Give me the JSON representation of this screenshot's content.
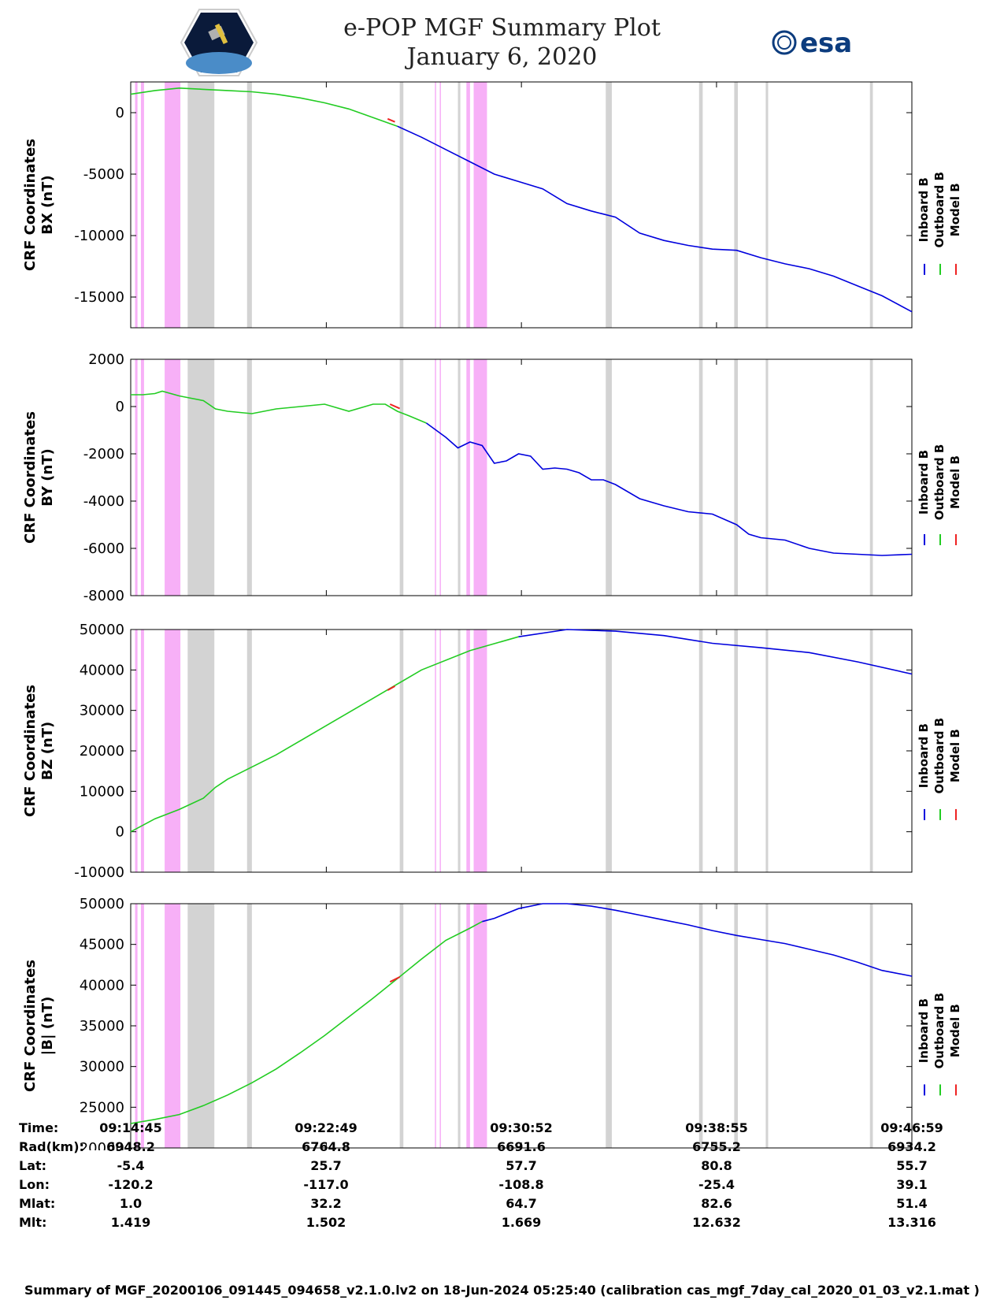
{
  "header": {
    "title": "e-POP MGF Summary Plot",
    "date": "January 6, 2020",
    "left_logo": "cassiope-satellite-logo",
    "right_logo": "esa",
    "right_logo_text": "esa"
  },
  "legend": {
    "entries": [
      {
        "label": "Inboard B",
        "color": "#0000dd"
      },
      {
        "label": "Outboard B",
        "color": "#22cc22"
      },
      {
        "label": "Model B",
        "color": "#ee2222"
      }
    ]
  },
  "colors": {
    "axis": "#000000",
    "grey_band": "#d3d3d3",
    "pink_band": "#f7b0f7",
    "inboard": "#0000dd",
    "outboard": "#22cc22",
    "model": "#ee2222"
  },
  "time_axis": {
    "x_range_min": [
      0,
      32.23
    ],
    "tick_minutes": [
      0,
      8.07,
      16.12,
      24.17,
      32.23
    ]
  },
  "bands": {
    "grey": [
      [
        2.35,
        3.45
      ],
      [
        4.8,
        5.0
      ],
      [
        11.1,
        11.25
      ],
      [
        13.5,
        13.6
      ],
      [
        14.3,
        14.42
      ],
      [
        19.6,
        19.85
      ],
      [
        23.45,
        23.6
      ],
      [
        24.9,
        25.05
      ],
      [
        26.2,
        26.3
      ],
      [
        30.5,
        30.62
      ]
    ],
    "pink": [
      [
        0.18,
        0.28
      ],
      [
        0.42,
        0.55
      ],
      [
        1.4,
        2.05
      ],
      [
        12.55,
        12.6
      ],
      [
        12.75,
        12.8
      ],
      [
        13.85,
        14.0
      ],
      [
        14.15,
        14.7
      ]
    ]
  },
  "info_table": {
    "labels": [
      "Time:",
      "Rad(km):",
      "Lat:",
      "Lon:",
      "Mlat:",
      "Mlt:"
    ],
    "columns": [
      [
        "09:14:45",
        "6948.2",
        "-5.4",
        "-120.2",
        "1.0",
        "1.419"
      ],
      [
        "09:22:49",
        "6764.8",
        "25.7",
        "-117.0",
        "32.2",
        "1.502"
      ],
      [
        "09:30:52",
        "6691.6",
        "57.7",
        "-108.8",
        "64.7",
        "1.669"
      ],
      [
        "09:38:55",
        "6755.2",
        "80.8",
        "-25.4",
        "82.6",
        "12.632"
      ],
      [
        "09:46:59",
        "6934.2",
        "55.7",
        "39.1",
        "51.4",
        "13.316"
      ]
    ]
  },
  "footer": "Summary of MGF_20200106_091445_094658_v2.1.0.lv2 on 18-Jun-2024 05:25:40 (calibration cas_mgf_7day_cal_2020_01_03_v2.1.mat )",
  "chart_data": [
    {
      "type": "line",
      "title": "BX",
      "ylabel": [
        "CRF Coordinates",
        "BX (nT)"
      ],
      "ylim": [
        -17500,
        2500
      ],
      "yticks": [
        0,
        -5000,
        -10000,
        -15000
      ],
      "series": [
        {
          "name": "Outboard B",
          "x": [
            0,
            1,
            2,
            3,
            4,
            5,
            6,
            7,
            8,
            9,
            10,
            11
          ],
          "values": [
            1500,
            1800,
            2000,
            1900,
            1800,
            1700,
            1500,
            1200,
            800,
            300,
            -400,
            -1100
          ]
        },
        {
          "name": "Inboard B",
          "x": [
            11,
            12,
            13,
            14,
            15,
            16,
            17,
            18,
            19,
            20,
            21,
            22,
            23,
            24,
            25,
            26,
            27,
            28,
            29,
            30,
            31,
            32.23
          ],
          "values": [
            -1100,
            -2000,
            -3000,
            -4000,
            -5000,
            -5600,
            -6200,
            -7400,
            -8000,
            -8500,
            -9800,
            -10400,
            -10800,
            -11100,
            -11200,
            -11800,
            -12300,
            -12700,
            -13300,
            -14100,
            -14900,
            -16200
          ]
        },
        {
          "name": "Model B",
          "x": [
            10.6,
            10.9
          ],
          "values": [
            -500,
            -750
          ]
        }
      ]
    },
    {
      "type": "line",
      "title": "BY",
      "ylabel": [
        "CRF Coordinates",
        "BY (nT)"
      ],
      "ylim": [
        -8000,
        2000
      ],
      "yticks": [
        2000,
        0,
        -2000,
        -4000,
        -6000,
        -8000
      ],
      "series": [
        {
          "name": "Outboard B",
          "x": [
            0,
            0.5,
            1,
            1.3,
            2,
            2.5,
            3,
            3.5,
            4,
            5,
            6,
            7,
            8,
            9,
            10,
            10.5,
            11,
            11.5,
            12.2
          ],
          "values": [
            500,
            500,
            550,
            650,
            450,
            350,
            250,
            -100,
            -200,
            -300,
            -100,
            0,
            100,
            -200,
            100,
            100,
            -200,
            -400,
            -700
          ]
        },
        {
          "name": "Inboard B",
          "x": [
            12.2,
            13,
            13.5,
            14,
            14.5,
            15,
            15.5,
            16,
            16.5,
            17,
            17.5,
            18,
            18.5,
            19,
            19.5,
            20,
            21,
            22,
            23,
            24,
            25,
            25.5,
            26,
            27,
            28,
            29,
            30,
            31,
            32.23
          ],
          "values": [
            -700,
            -1300,
            -1750,
            -1500,
            -1650,
            -2400,
            -2300,
            -2000,
            -2100,
            -2650,
            -2600,
            -2650,
            -2800,
            -3100,
            -3100,
            -3300,
            -3900,
            -4200,
            -4450,
            -4550,
            -5000,
            -5400,
            -5550,
            -5650,
            -6000,
            -6200,
            -6250,
            -6300,
            -6250
          ]
        },
        {
          "name": "Model B",
          "x": [
            10.7,
            11.1
          ],
          "values": [
            100,
            -80
          ]
        }
      ]
    },
    {
      "type": "line",
      "title": "BZ",
      "ylabel": [
        "CRF Coordinates",
        "BZ (nT)"
      ],
      "ylim": [
        -10000,
        50000
      ],
      "yticks": [
        50000,
        40000,
        30000,
        20000,
        10000,
        0,
        -10000
      ],
      "series": [
        {
          "name": "Outboard B",
          "x": [
            0,
            1,
            2,
            3,
            3.5,
            4,
            6,
            8,
            10,
            12,
            14,
            16
          ],
          "values": [
            0,
            3200,
            5500,
            8300,
            11000,
            13000,
            19000,
            26000,
            33000,
            40000,
            44800,
            48200
          ]
        },
        {
          "name": "Inboard B",
          "x": [
            16,
            18,
            20,
            22,
            24,
            26,
            28,
            30,
            32.23
          ],
          "values": [
            48200,
            50000,
            49600,
            48500,
            46600,
            45500,
            44300,
            42000,
            39000
          ]
        },
        {
          "name": "Model B",
          "x": [
            10.6,
            10.9
          ],
          "values": [
            35000,
            36000
          ]
        }
      ]
    },
    {
      "type": "line",
      "title": "|B|",
      "ylabel": [
        "CRF Coordinates",
        "|B| (nT)"
      ],
      "ylim": [
        20000,
        50000
      ],
      "yticks": [
        50000,
        45000,
        40000,
        35000,
        30000,
        25000,
        20000
      ],
      "series": [
        {
          "name": "Outboard B",
          "x": [
            0,
            1,
            2,
            3,
            4,
            5,
            6,
            7,
            8,
            9,
            10,
            11,
            12,
            13,
            14,
            14.5
          ],
          "values": [
            23000,
            23500,
            24100,
            25200,
            26500,
            28000,
            29700,
            31700,
            33800,
            36100,
            38400,
            40800,
            43200,
            45500,
            47000,
            47800
          ]
        },
        {
          "name": "Inboard B",
          "x": [
            14.5,
            15,
            16,
            17,
            18,
            19,
            20,
            21,
            22,
            23,
            24,
            25,
            26,
            27,
            28,
            29,
            30,
            31,
            32.23
          ],
          "values": [
            47800,
            48200,
            49400,
            50000,
            50000,
            49700,
            49200,
            48600,
            48000,
            47400,
            46700,
            46100,
            45600,
            45100,
            44400,
            43700,
            42800,
            41800,
            41100
          ]
        },
        {
          "name": "Model B",
          "x": [
            10.7,
            11.1
          ],
          "values": [
            40400,
            41000
          ]
        }
      ]
    }
  ]
}
